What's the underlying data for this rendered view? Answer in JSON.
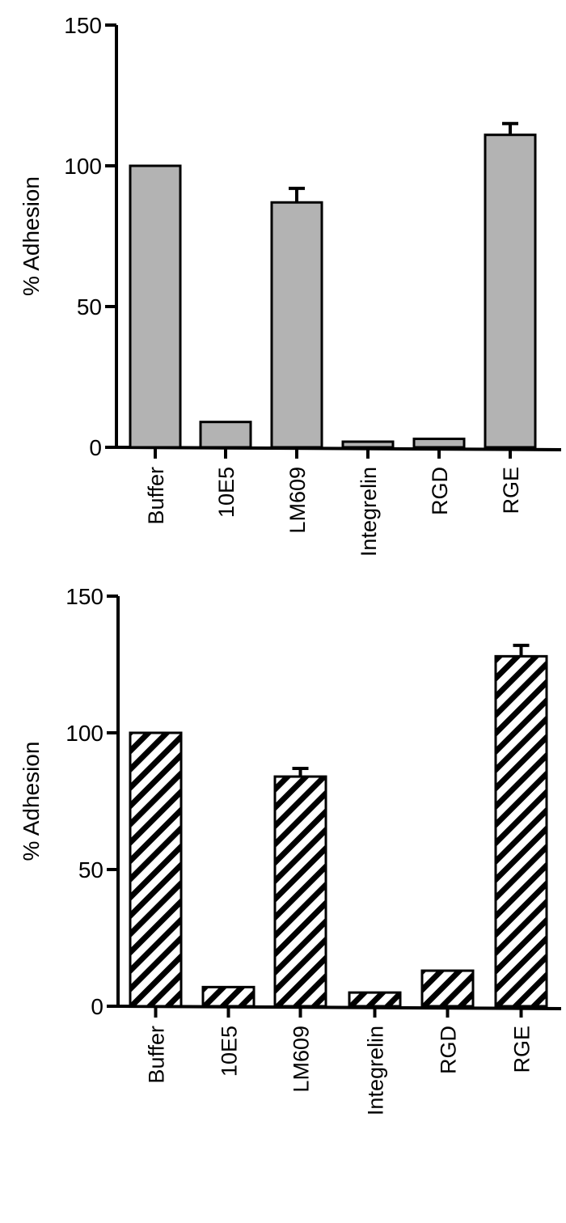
{
  "colors": {
    "bar_fill_gray": "#b3b3b3",
    "bar_stroke": "#000000",
    "hatch_fg": "#000000",
    "hatch_bg": "#ffffff"
  },
  "chart_data": [
    {
      "type": "bar",
      "title": "",
      "xlabel": "",
      "ylabel": "% Adhesion",
      "ylim": [
        0,
        150
      ],
      "yticks": [
        0,
        50,
        100,
        150
      ],
      "grid": false,
      "legend": null,
      "fill_style": "gray",
      "categories": [
        "Buffer",
        "10E5",
        "LM609",
        "Integrelin",
        "RGD",
        "RGE"
      ],
      "values": [
        100,
        9,
        87,
        2,
        3,
        111
      ],
      "errors": [
        0,
        0,
        5,
        0,
        0,
        4
      ]
    },
    {
      "type": "bar",
      "title": "",
      "xlabel": "",
      "ylabel": "% Adhesion",
      "ylim": [
        0,
        150
      ],
      "yticks": [
        0,
        50,
        100,
        150
      ],
      "grid": false,
      "legend": null,
      "fill_style": "hatched",
      "categories": [
        "Buffer",
        "10E5",
        "LM609",
        "Integrelin",
        "RGD",
        "RGE"
      ],
      "values": [
        100,
        7,
        84,
        5,
        13,
        128
      ],
      "errors": [
        0,
        0,
        3,
        0,
        0,
        4
      ]
    }
  ]
}
